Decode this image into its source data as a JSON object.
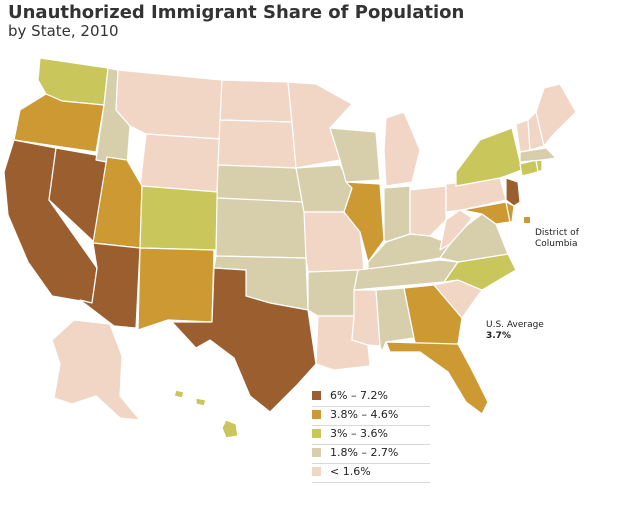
{
  "title": "Unauthorized Immigrant Share of Population",
  "subtitle": "by State, 2010",
  "dc_label": "District of\nColumbia",
  "average": {
    "label": "U.S. Average",
    "value": "3.7%"
  },
  "colors": {
    "c6": "#9b5f2f",
    "c5": "#cc9933",
    "c4": "#c9c65c",
    "c3": "#d7cfac",
    "c2": "#f1d6c6",
    "border": "#ffffff"
  },
  "legend": [
    {
      "label": "6% – 7.2%",
      "color": "#9b5f2f"
    },
    {
      "label": "3.8% – 4.6%",
      "color": "#cc9933"
    },
    {
      "label": "3% – 3.6%",
      "color": "#c9c65c"
    },
    {
      "label": "1.8% – 2.7%",
      "color": "#d7cfac"
    },
    {
      "label": "< 1.6%",
      "color": "#f1d6c6"
    }
  ]
}
